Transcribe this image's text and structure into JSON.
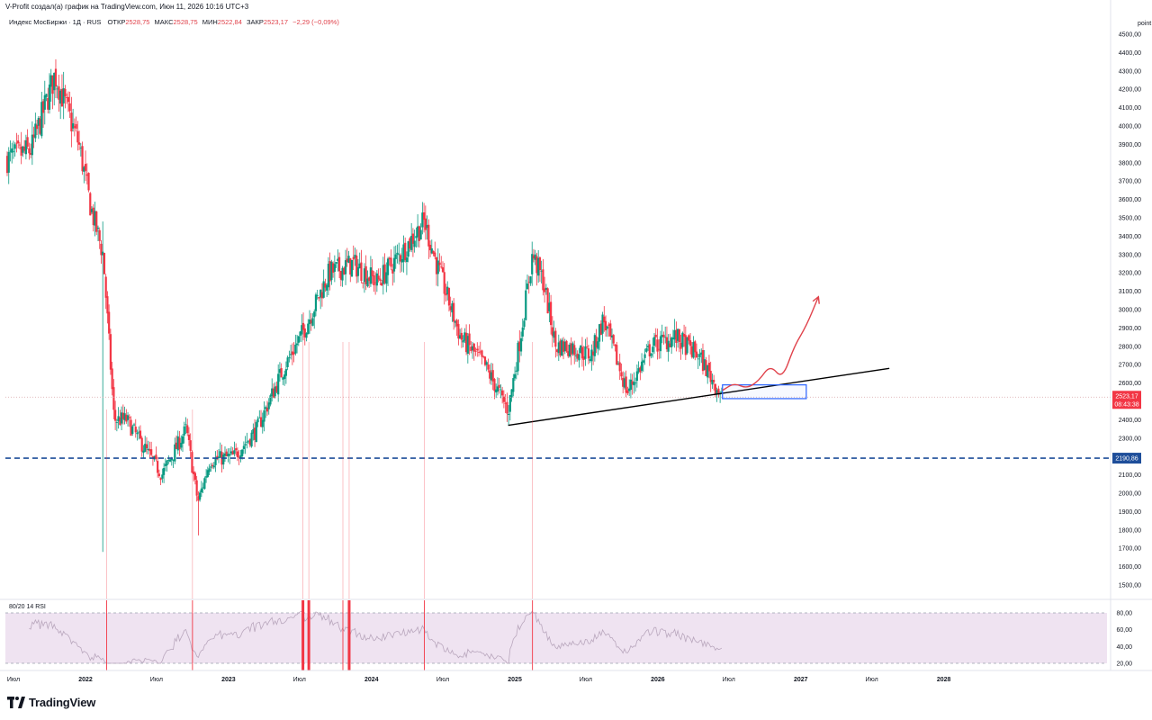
{
  "header": {
    "credit": "V-Profit создал(а) график на TradingView.com, Июн 11, 2026 10:16 UTC+3",
    "symbol": "Индекс МосБиржи · 1Д · RUS",
    "open_label": "ОТКР",
    "open_value": "2528,75",
    "high_label": "МАКС",
    "high_value": "2528,75",
    "low_label": "МИН",
    "low_value": "2522,84",
    "close_label": "ЗАКР",
    "close_value": "2523,17",
    "change": "−2,29 (−0,09%)"
  },
  "colors": {
    "up": "#089981",
    "down": "#f23645",
    "support_line": "#000000",
    "level_line": "#1e4e9a",
    "forecast_arrow": "#e0424b",
    "box": "#2962ff",
    "rsi_band": "#efe3f1",
    "rsi_line": "#b9a7bd"
  },
  "chart_data": {
    "type": "candlestick",
    "unit": "point",
    "ylim": [
      1450,
      4520
    ],
    "x_tick_labels": [
      "Июл",
      "2022",
      "Июл",
      "2023",
      "Июл",
      "2024",
      "Июл",
      "2025",
      "Июл",
      "2026",
      "Июл",
      "2027",
      "Июл",
      "2028"
    ],
    "y_ticks": [
      "4500,00",
      "4400,00",
      "4300,00",
      "4200,00",
      "4100,00",
      "4000,00",
      "3900,00",
      "3800,00",
      "3700,00",
      "3600,00",
      "3500,00",
      "3400,00",
      "3300,00",
      "3200,00",
      "3100,00",
      "3000,00",
      "2900,00",
      "2800,00",
      "2700,00",
      "2600,00",
      "2500,00",
      "2400,00",
      "2300,00",
      "2200,00",
      "2100,00",
      "2000,00",
      "1900,00",
      "1800,00",
      "1700,00",
      "1600,00",
      "1500,00"
    ],
    "path_anchors": [
      {
        "x": "2021-06",
        "y": 3820
      },
      {
        "x": "2021-08",
        "y": 3870
      },
      {
        "x": "2021-10",
        "y": 4280
      },
      {
        "x": "2021-12",
        "y": 3900
      },
      {
        "x": "2022-01",
        "y": 3550
      },
      {
        "x": "2022-02",
        "y": 3300
      },
      {
        "x": "2022-03",
        "y": 2400
      },
      {
        "x": "2022-04",
        "y": 2400
      },
      {
        "x": "2022-05",
        "y": 2300
      },
      {
        "x": "2022-07",
        "y": 2100
      },
      {
        "x": "2022-09",
        "y": 2350
      },
      {
        "x": "2022-10",
        "y": 1950
      },
      {
        "x": "2022-11",
        "y": 2180
      },
      {
        "x": "2023-01",
        "y": 2200
      },
      {
        "x": "2023-03",
        "y": 2350
      },
      {
        "x": "2023-05",
        "y": 2650
      },
      {
        "x": "2023-07",
        "y": 2900
      },
      {
        "x": "2023-09",
        "y": 3200
      },
      {
        "x": "2023-11",
        "y": 3250
      },
      {
        "x": "2024-01",
        "y": 3150
      },
      {
        "x": "2024-03",
        "y": 3300
      },
      {
        "x": "2024-05",
        "y": 3480
      },
      {
        "x": "2024-06",
        "y": 3250
      },
      {
        "x": "2024-08",
        "y": 2850
      },
      {
        "x": "2024-10",
        "y": 2700
      },
      {
        "x": "2024-12",
        "y": 2450
      },
      {
        "x": "2025-01",
        "y": 2850
      },
      {
        "x": "2025-02",
        "y": 3300
      },
      {
        "x": "2025-03",
        "y": 3150
      },
      {
        "x": "2025-04",
        "y": 2800
      },
      {
        "x": "2025-05",
        "y": 2800
      },
      {
        "x": "2025-07",
        "y": 2750
      },
      {
        "x": "2025-08",
        "y": 2950
      },
      {
        "x": "2025-10",
        "y": 2550
      },
      {
        "x": "2025-12",
        "y": 2800
      },
      {
        "x": "2026-02",
        "y": 2850
      },
      {
        "x": "2026-04",
        "y": 2750
      },
      {
        "x": "2026-06",
        "y": 2523
      }
    ],
    "wick_extremes": [
      {
        "x": "2021-10",
        "low": 4210,
        "high": 4290
      },
      {
        "x": "2022-02",
        "low": 1680,
        "high": 3480
      },
      {
        "x": "2022-10",
        "low": 1770,
        "high": 2010
      },
      {
        "x": "2024-05",
        "low": 3420,
        "high": 3520
      },
      {
        "x": "2024-12",
        "low": 2370,
        "high": 2480
      },
      {
        "x": "2025-02",
        "low": 3220,
        "high": 3370
      }
    ],
    "horizontal_level": {
      "value": 2190.86,
      "label": "2190,86"
    },
    "last_price": {
      "value": 2523.17,
      "label": "2523,17",
      "countdown": "08:43:38"
    },
    "support_trendline": {
      "from": {
        "x": "2024-12",
        "y": 2370
      },
      "to": {
        "x": "2027-08",
        "y": 2680
      }
    },
    "consolidation_box": {
      "x_from": "2026-06",
      "x_to": "2027-01",
      "y_low": 2515,
      "y_high": 2590
    },
    "forecast_arrow": [
      {
        "x": "2026-06",
        "y": 2560
      },
      {
        "x": "2026-07",
        "y": 2600
      },
      {
        "x": "2026-08",
        "y": 2570
      },
      {
        "x": "2026-09",
        "y": 2610
      },
      {
        "x": "2026-10",
        "y": 2700
      },
      {
        "x": "2026-11",
        "y": 2620
      },
      {
        "x": "2026-12",
        "y": 2800
      },
      {
        "x": "2027-01",
        "y": 2910
      },
      {
        "x": "2027-02",
        "y": 3070
      }
    ],
    "rsi": {
      "label": "80/20 14 RSI",
      "upper": 80,
      "lower": 20,
      "y_ticks": [
        "80,00",
        "60,00",
        "40,00",
        "20,00"
      ],
      "extreme_markers": [
        {
          "x": "2022-02-24",
          "dir": "low",
          "bold": false
        },
        {
          "x": "2022-10-01",
          "dir": "low",
          "bold": false
        },
        {
          "x": "2023-07-10",
          "dir": "high",
          "bold": true
        },
        {
          "x": "2023-07-25",
          "dir": "high",
          "bold": true
        },
        {
          "x": "2023-10-20",
          "dir": "high",
          "bold": false
        },
        {
          "x": "2023-11-05",
          "dir": "high",
          "bold": true
        },
        {
          "x": "2024-05-15",
          "dir": "high",
          "bold": false
        },
        {
          "x": "2025-02-15",
          "dir": "high",
          "bold": false
        }
      ]
    }
  },
  "footer": {
    "brand": "TradingView"
  }
}
